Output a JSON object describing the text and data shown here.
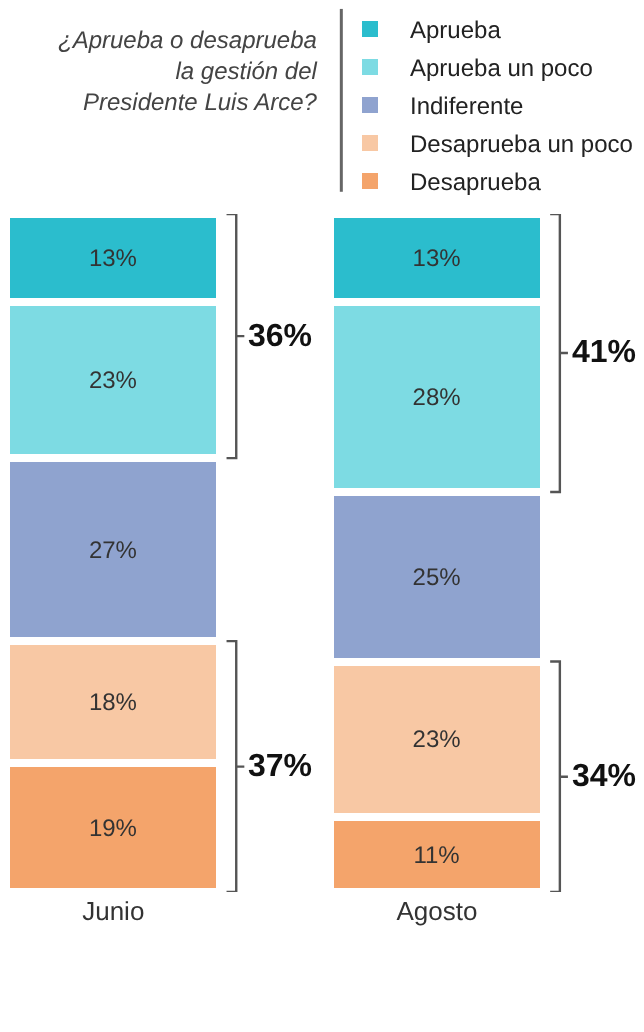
{
  "chart_data": {
    "type": "bar",
    "stacked": true,
    "title": "¿Aprueba o desaprueba la gestión del Presidente Luis Arce?",
    "categories": [
      "Junio",
      "Agosto"
    ],
    "series": [
      {
        "name": "Desaprueba",
        "color": "#f4a46b",
        "values": [
          19,
          11
        ],
        "value_labels": [
          "19%",
          "11%"
        ]
      },
      {
        "name": "Desaprueba un poco",
        "color": "#f8c8a4",
        "values": [
          18,
          23
        ],
        "value_labels": [
          "18%",
          "23%"
        ]
      },
      {
        "name": "Indiferente",
        "color": "#8fa3cf",
        "values": [
          27,
          25
        ],
        "value_labels": [
          "27%",
          "25%"
        ]
      },
      {
        "name": "Aprueba un poco",
        "color": "#7ddbe3",
        "values": [
          23,
          28
        ],
        "value_labels": [
          "23%",
          "28%"
        ]
      },
      {
        "name": "Aprueba",
        "color": "#2bbdcd",
        "values": [
          13,
          13
        ],
        "value_labels": [
          "13%",
          "13%"
        ]
      }
    ],
    "legend": "top right",
    "annotations": [
      "36%",
      "37%",
      "41%",
      "34%"
    ]
  }
}
